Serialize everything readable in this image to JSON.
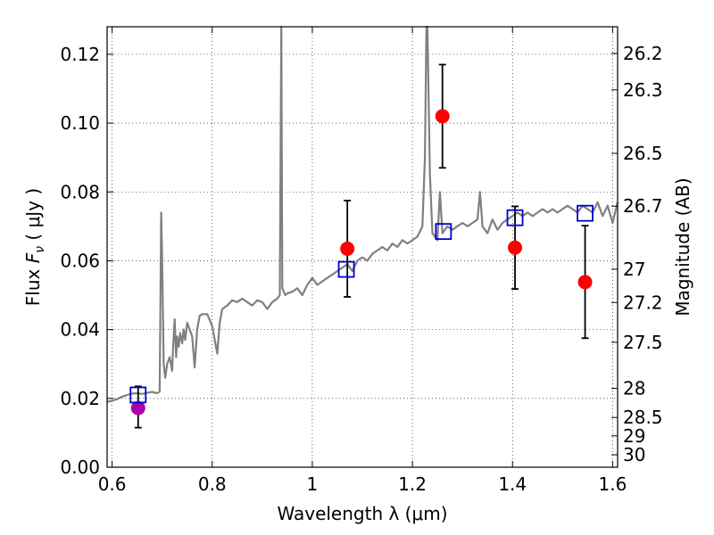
{
  "chart_data": {
    "type": "scatter",
    "title": "",
    "xlabel": "Wavelength  λ (μm)",
    "ylabel": "Flux  F_ν  ( μJy )",
    "ylabel_parts": {
      "prefix": "Flux  ",
      "symbol": "F",
      "subscript": "ν",
      "suffix": "  ( μJy )"
    },
    "y2label": "Magnitude (AB)",
    "xlim": [
      0.59,
      1.61
    ],
    "ylim": [
      0.0,
      0.128
    ],
    "grid": true,
    "x_ticks": [
      {
        "value": 0.6,
        "label": "0.6"
      },
      {
        "value": 0.8,
        "label": "0.8"
      },
      {
        "value": 1.0,
        "label": "1"
      },
      {
        "value": 1.2,
        "label": "1.2"
      },
      {
        "value": 1.4,
        "label": "1.4"
      },
      {
        "value": 1.6,
        "label": "1.6"
      }
    ],
    "y_ticks": [
      {
        "value": 0.0,
        "label": "0.00"
      },
      {
        "value": 0.02,
        "label": "0.02"
      },
      {
        "value": 0.04,
        "label": "0.04"
      },
      {
        "value": 0.06,
        "label": "0.06"
      },
      {
        "value": 0.08,
        "label": "0.08"
      },
      {
        "value": 0.1,
        "label": "0.10"
      },
      {
        "value": 0.12,
        "label": "0.12"
      }
    ],
    "y2_ticks": [
      {
        "mag": 26.2,
        "label": "26.2"
      },
      {
        "mag": 26.3,
        "label": "26.3"
      },
      {
        "mag": 26.5,
        "label": "26.5"
      },
      {
        "mag": 26.7,
        "label": "26.7"
      },
      {
        "mag": 27.0,
        "label": "27"
      },
      {
        "mag": 27.2,
        "label": "27.2"
      },
      {
        "mag": 27.5,
        "label": "27.5"
      },
      {
        "mag": 28.0,
        "label": "28"
      },
      {
        "mag": 28.5,
        "label": "28.5"
      },
      {
        "mag": 29.0,
        "label": "29"
      },
      {
        "mag": 30.0,
        "label": "30"
      }
    ],
    "model_spectrum": {
      "color": "#808080",
      "x": [
        0.59,
        0.6,
        0.61,
        0.62,
        0.63,
        0.64,
        0.65,
        0.66,
        0.67,
        0.68,
        0.69,
        0.695,
        0.698,
        0.7,
        0.703,
        0.706,
        0.71,
        0.715,
        0.72,
        0.722,
        0.725,
        0.728,
        0.73,
        0.733,
        0.736,
        0.74,
        0.743,
        0.746,
        0.75,
        0.755,
        0.76,
        0.765,
        0.77,
        0.775,
        0.78,
        0.79,
        0.8,
        0.81,
        0.815,
        0.82,
        0.83,
        0.84,
        0.85,
        0.86,
        0.87,
        0.88,
        0.89,
        0.9,
        0.91,
        0.92,
        0.93,
        0.935,
        0.938,
        0.94,
        0.943,
        0.946,
        0.95,
        0.96,
        0.97,
        0.98,
        0.99,
        1.0,
        1.01,
        1.02,
        1.03,
        1.04,
        1.05,
        1.06,
        1.07,
        1.08,
        1.09,
        1.1,
        1.11,
        1.12,
        1.13,
        1.14,
        1.15,
        1.16,
        1.17,
        1.18,
        1.19,
        1.2,
        1.21,
        1.22,
        1.225,
        1.228,
        1.23,
        1.235,
        1.24,
        1.245,
        1.25,
        1.255,
        1.26,
        1.265,
        1.27,
        1.28,
        1.29,
        1.3,
        1.31,
        1.32,
        1.33,
        1.335,
        1.34,
        1.35,
        1.36,
        1.37,
        1.38,
        1.39,
        1.4,
        1.41,
        1.42,
        1.43,
        1.44,
        1.45,
        1.46,
        1.47,
        1.48,
        1.49,
        1.5,
        1.51,
        1.52,
        1.53,
        1.54,
        1.55,
        1.56,
        1.57,
        1.58,
        1.59,
        1.6,
        1.61
      ],
      "y": [
        0.019,
        0.0193,
        0.0198,
        0.0205,
        0.021,
        0.0214,
        0.0215,
        0.0213,
        0.0216,
        0.0219,
        0.0215,
        0.022,
        0.074,
        0.06,
        0.03,
        0.026,
        0.03,
        0.032,
        0.028,
        0.035,
        0.043,
        0.032,
        0.038,
        0.035,
        0.039,
        0.036,
        0.04,
        0.037,
        0.042,
        0.04,
        0.038,
        0.029,
        0.04,
        0.044,
        0.0445,
        0.0445,
        0.041,
        0.033,
        0.042,
        0.046,
        0.047,
        0.0485,
        0.048,
        0.049,
        0.048,
        0.047,
        0.0485,
        0.048,
        0.046,
        0.048,
        0.049,
        0.05,
        0.13,
        0.052,
        0.051,
        0.05,
        0.0505,
        0.051,
        0.052,
        0.05,
        0.053,
        0.055,
        0.053,
        0.054,
        0.055,
        0.056,
        0.057,
        0.058,
        0.059,
        0.057,
        0.06,
        0.061,
        0.06,
        0.062,
        0.063,
        0.064,
        0.063,
        0.065,
        0.064,
        0.066,
        0.065,
        0.066,
        0.067,
        0.07,
        0.09,
        0.13,
        0.128,
        0.085,
        0.068,
        0.067,
        0.066,
        0.08,
        0.068,
        0.069,
        0.07,
        0.069,
        0.07,
        0.071,
        0.07,
        0.071,
        0.072,
        0.08,
        0.07,
        0.068,
        0.072,
        0.069,
        0.071,
        0.072,
        0.073,
        0.074,
        0.073,
        0.074,
        0.073,
        0.074,
        0.075,
        0.074,
        0.075,
        0.074,
        0.075,
        0.076,
        0.075,
        0.074,
        0.076,
        0.075,
        0.074,
        0.077,
        0.073,
        0.076,
        0.071,
        0.077
      ]
    },
    "series": [
      {
        "marker": "circle",
        "color": "#ff0000",
        "points": [
          {
            "x": 1.07,
            "y": 0.0635,
            "yerr_low": 0.0495,
            "yerr_high": 0.0775
          },
          {
            "x": 1.26,
            "y": 0.102,
            "yerr_low": 0.087,
            "yerr_high": 0.117
          },
          {
            "x": 1.405,
            "y": 0.0638,
            "yerr_low": 0.0518,
            "yerr_high": 0.0758
          },
          {
            "x": 1.545,
            "y": 0.0538,
            "yerr_low": 0.0375,
            "yerr_high": 0.0702
          }
        ]
      },
      {
        "marker": "circle",
        "color": "#aa00aa",
        "points": [
          {
            "x": 0.652,
            "y": 0.0172,
            "yerr_low": 0.0115,
            "yerr_high": 0.0235
          }
        ]
      },
      {
        "marker": "square-open",
        "color": "#0000cc",
        "points": [
          {
            "x": 0.652,
            "y": 0.021
          },
          {
            "x": 1.068,
            "y": 0.0575
          },
          {
            "x": 1.262,
            "y": 0.0685
          },
          {
            "x": 1.405,
            "y": 0.0725
          },
          {
            "x": 1.545,
            "y": 0.0738
          }
        ]
      }
    ]
  }
}
